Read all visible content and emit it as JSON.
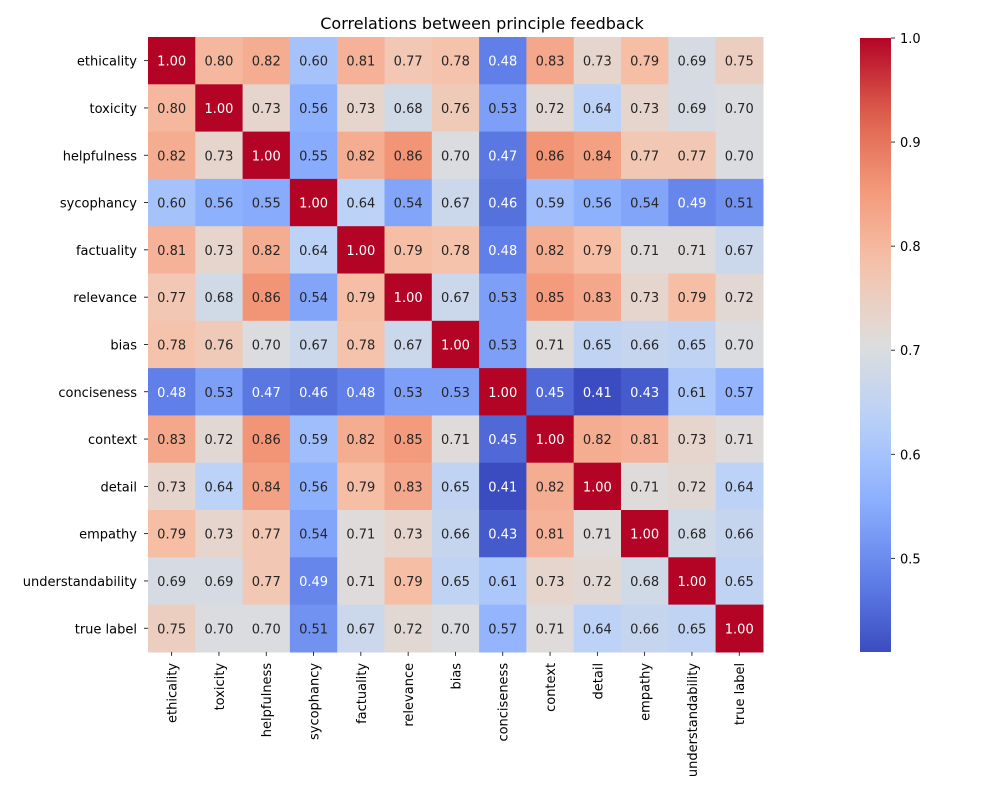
{
  "chart_data": {
    "type": "heatmap",
    "title": "Correlations between principle feedback",
    "xlabel": "",
    "ylabel": "",
    "labels": [
      "ethicality",
      "toxicity",
      "helpfulness",
      "sycophancy",
      "factuality",
      "relevance",
      "bias",
      "conciseness",
      "context",
      "detail",
      "empathy",
      "understandability",
      "true label"
    ],
    "matrix": [
      [
        "1.00",
        "0.80",
        "0.82",
        "0.60",
        "0.81",
        "0.77",
        "0.78",
        "0.48",
        "0.83",
        "0.73",
        "0.79",
        "0.69",
        "0.75"
      ],
      [
        "0.80",
        "1.00",
        "0.73",
        "0.56",
        "0.73",
        "0.68",
        "0.76",
        "0.53",
        "0.72",
        "0.64",
        "0.73",
        "0.69",
        "0.70"
      ],
      [
        "0.82",
        "0.73",
        "1.00",
        "0.55",
        "0.82",
        "0.86",
        "0.70",
        "0.47",
        "0.86",
        "0.84",
        "0.77",
        "0.77",
        "0.70"
      ],
      [
        "0.60",
        "0.56",
        "0.55",
        "1.00",
        "0.64",
        "0.54",
        "0.67",
        "0.46",
        "0.59",
        "0.56",
        "0.54",
        "0.49",
        "0.51"
      ],
      [
        "0.81",
        "0.73",
        "0.82",
        "0.64",
        "1.00",
        "0.79",
        "0.78",
        "0.48",
        "0.82",
        "0.79",
        "0.71",
        "0.71",
        "0.67"
      ],
      [
        "0.77",
        "0.68",
        "0.86",
        "0.54",
        "0.79",
        "1.00",
        "0.67",
        "0.53",
        "0.85",
        "0.83",
        "0.73",
        "0.79",
        "0.72"
      ],
      [
        "0.78",
        "0.76",
        "0.70",
        "0.67",
        "0.78",
        "0.67",
        "1.00",
        "0.53",
        "0.71",
        "0.65",
        "0.66",
        "0.65",
        "0.70"
      ],
      [
        "0.48",
        "0.53",
        "0.47",
        "0.46",
        "0.48",
        "0.53",
        "0.53",
        "1.00",
        "0.45",
        "0.41",
        "0.43",
        "0.61",
        "0.57"
      ],
      [
        "0.83",
        "0.72",
        "0.86",
        "0.59",
        "0.82",
        "0.85",
        "0.71",
        "0.45",
        "1.00",
        "0.82",
        "0.81",
        "0.73",
        "0.71"
      ],
      [
        "0.73",
        "0.64",
        "0.84",
        "0.56",
        "0.79",
        "0.83",
        "0.65",
        "0.41",
        "0.82",
        "1.00",
        "0.71",
        "0.72",
        "0.64"
      ],
      [
        "0.79",
        "0.73",
        "0.77",
        "0.54",
        "0.71",
        "0.73",
        "0.66",
        "0.43",
        "0.81",
        "0.71",
        "1.00",
        "0.68",
        "0.66"
      ],
      [
        "0.69",
        "0.69",
        "0.77",
        "0.49",
        "0.71",
        "0.79",
        "0.65",
        "0.61",
        "0.73",
        "0.72",
        "0.68",
        "1.00",
        "0.65"
      ],
      [
        "0.75",
        "0.70",
        "0.70",
        "0.51",
        "0.67",
        "0.72",
        "0.70",
        "0.57",
        "0.71",
        "0.64",
        "0.66",
        "0.65",
        "1.00"
      ]
    ],
    "colormap": "coolwarm",
    "vmin": 0.41,
    "vmax": 1.0,
    "colorbar_ticks": [
      "0.5",
      "0.6",
      "0.7",
      "0.8",
      "0.9",
      "1.0"
    ],
    "colorbar_position": "right"
  }
}
